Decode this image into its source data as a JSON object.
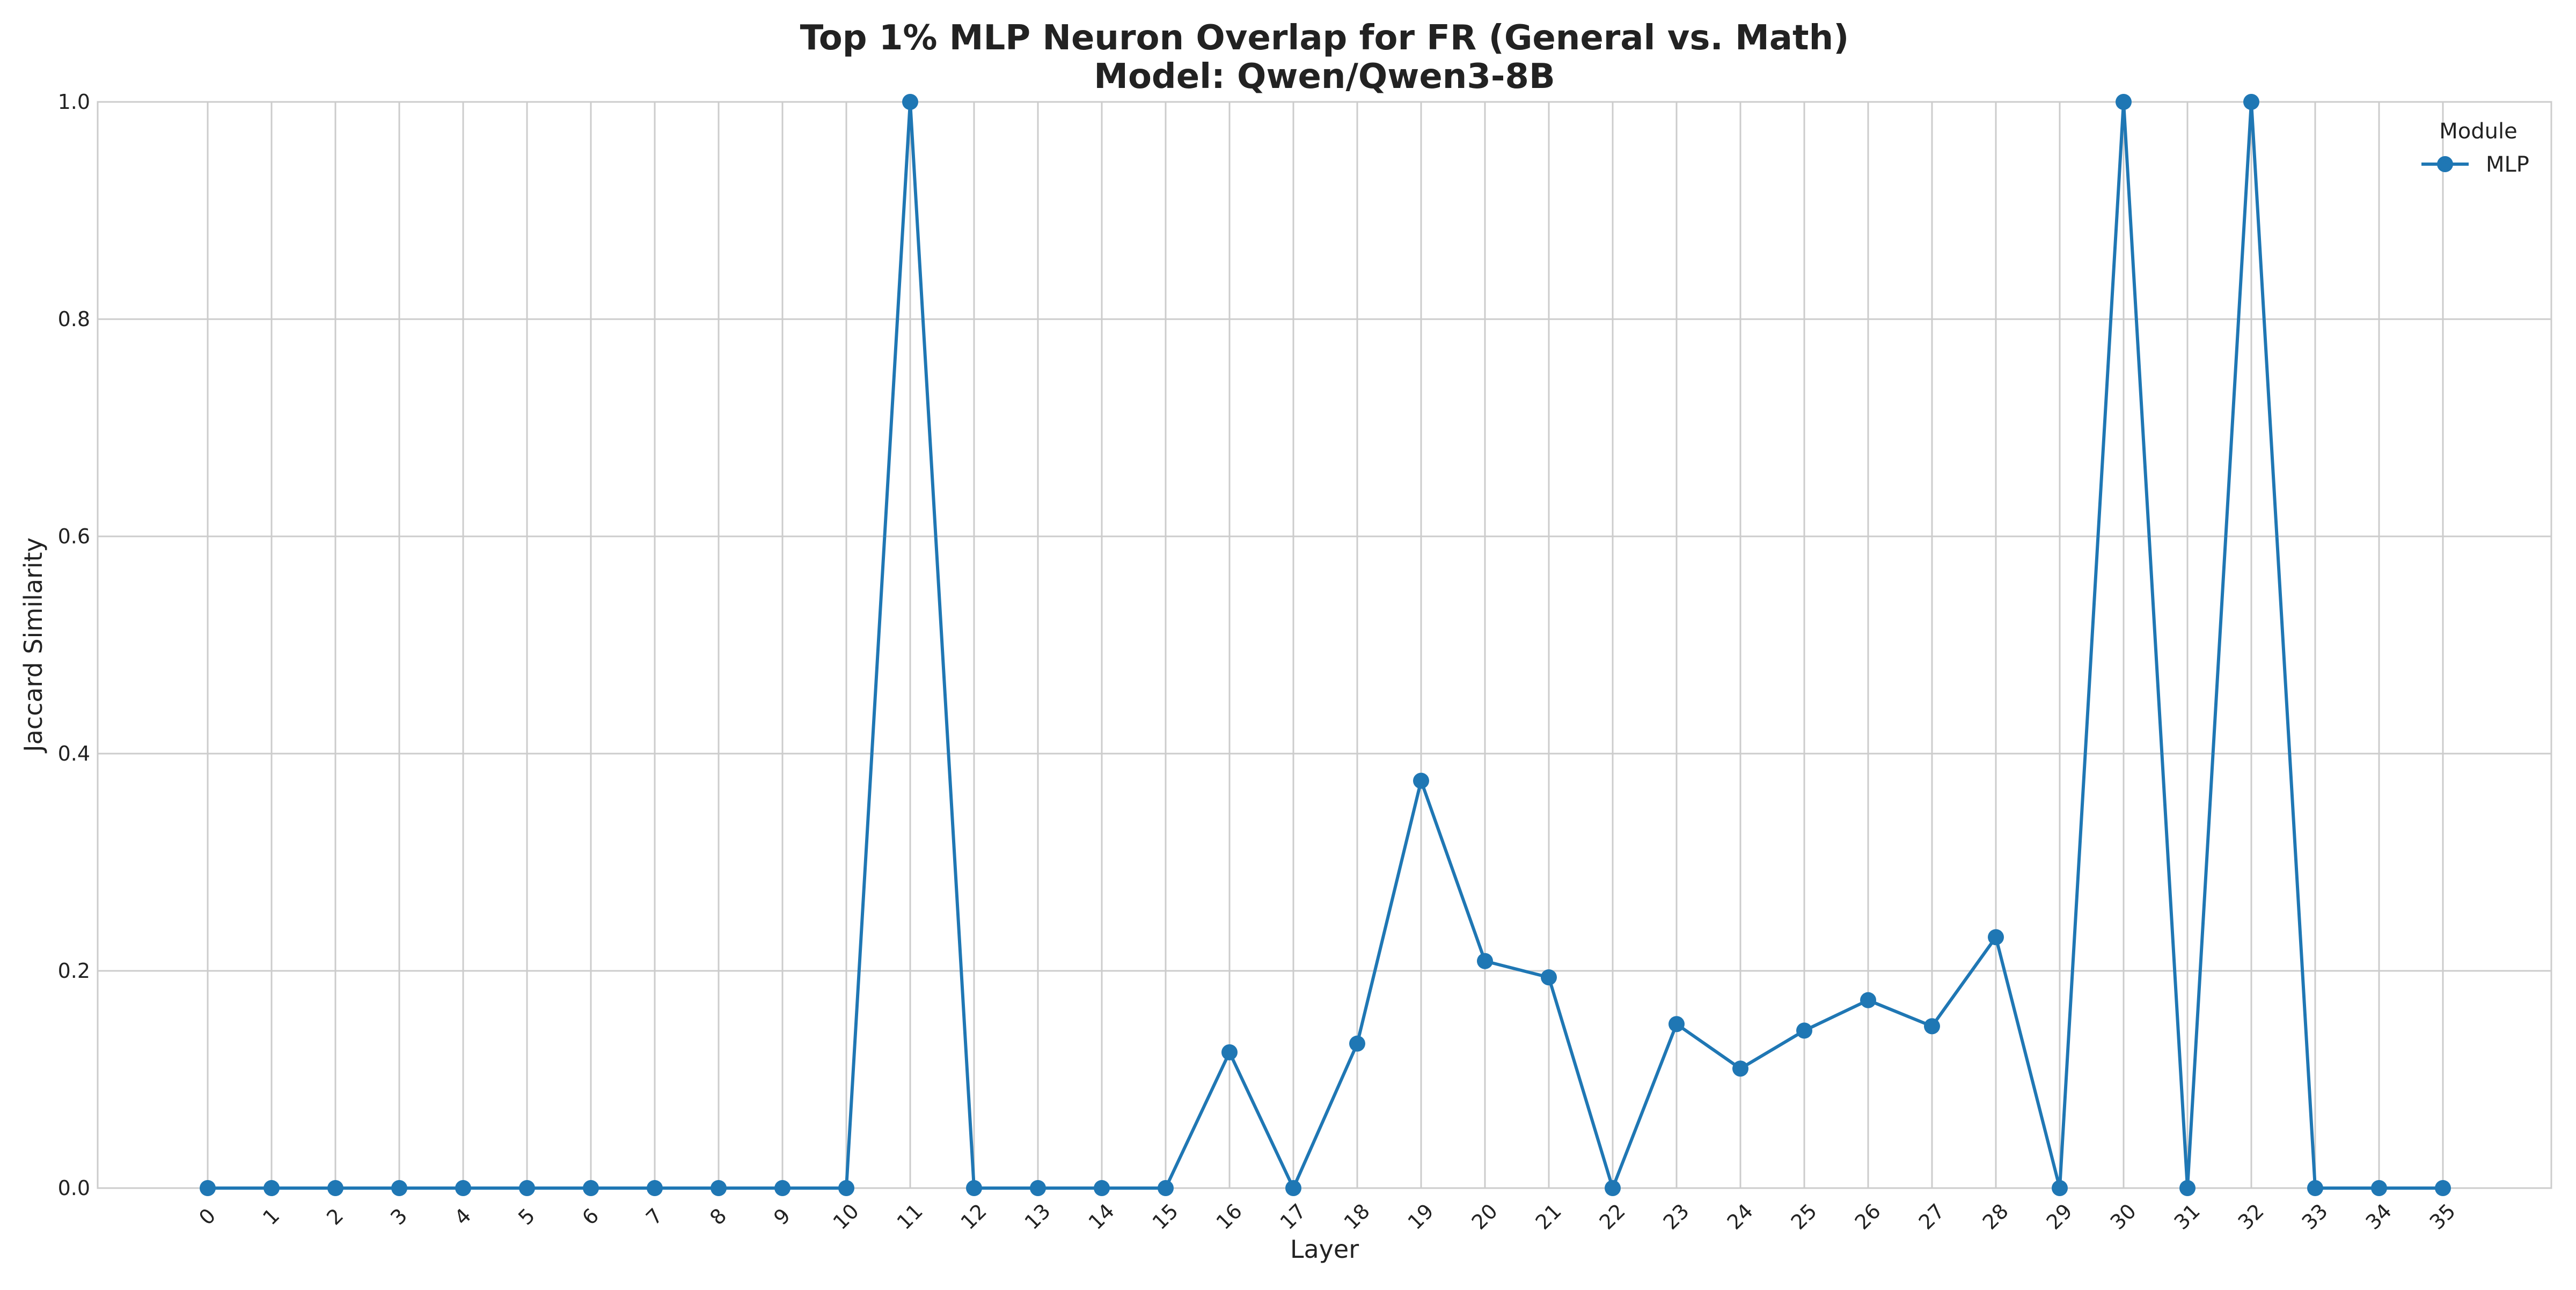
{
  "chart_data": {
    "type": "line",
    "title": "Top 1% MLP Neuron Overlap for FR (General vs. Math)",
    "subtitle": "Model: Qwen/Qwen3-8B",
    "xlabel": "Layer",
    "ylabel": "Jaccard Similarity",
    "x": [
      0,
      1,
      2,
      3,
      4,
      5,
      6,
      7,
      8,
      9,
      10,
      11,
      12,
      13,
      14,
      15,
      16,
      17,
      18,
      19,
      20,
      21,
      22,
      23,
      24,
      25,
      26,
      27,
      28,
      29,
      30,
      31,
      32,
      33,
      34,
      35
    ],
    "x_tick_labels": [
      "0",
      "1",
      "2",
      "3",
      "4",
      "5",
      "6",
      "7",
      "8",
      "9",
      "10",
      "11",
      "12",
      "13",
      "14",
      "15",
      "16",
      "17",
      "18",
      "19",
      "20",
      "21",
      "22",
      "23",
      "24",
      "25",
      "26",
      "27",
      "28",
      "29",
      "30",
      "31",
      "32",
      "33",
      "34",
      "35"
    ],
    "ylim": [
      0,
      1
    ],
    "y_ticks": [
      "0.0",
      "0.2",
      "0.4",
      "0.6",
      "0.8",
      "1.0"
    ],
    "grid": true,
    "legend": {
      "title": "Module",
      "placement": "top-right"
    },
    "series": [
      {
        "name": "MLP",
        "color": "#1f77b4",
        "marker": "circle",
        "values": [
          0,
          0,
          0,
          0,
          0,
          0,
          0,
          0,
          0,
          0,
          0,
          1.0,
          0,
          0,
          0,
          0,
          0.125,
          0,
          0.133,
          0.375,
          0.209,
          0.194,
          0,
          0.151,
          0.11,
          0.145,
          0.173,
          0.149,
          0.231,
          0,
          1.0,
          0,
          1.0,
          0,
          0,
          0
        ]
      }
    ]
  }
}
